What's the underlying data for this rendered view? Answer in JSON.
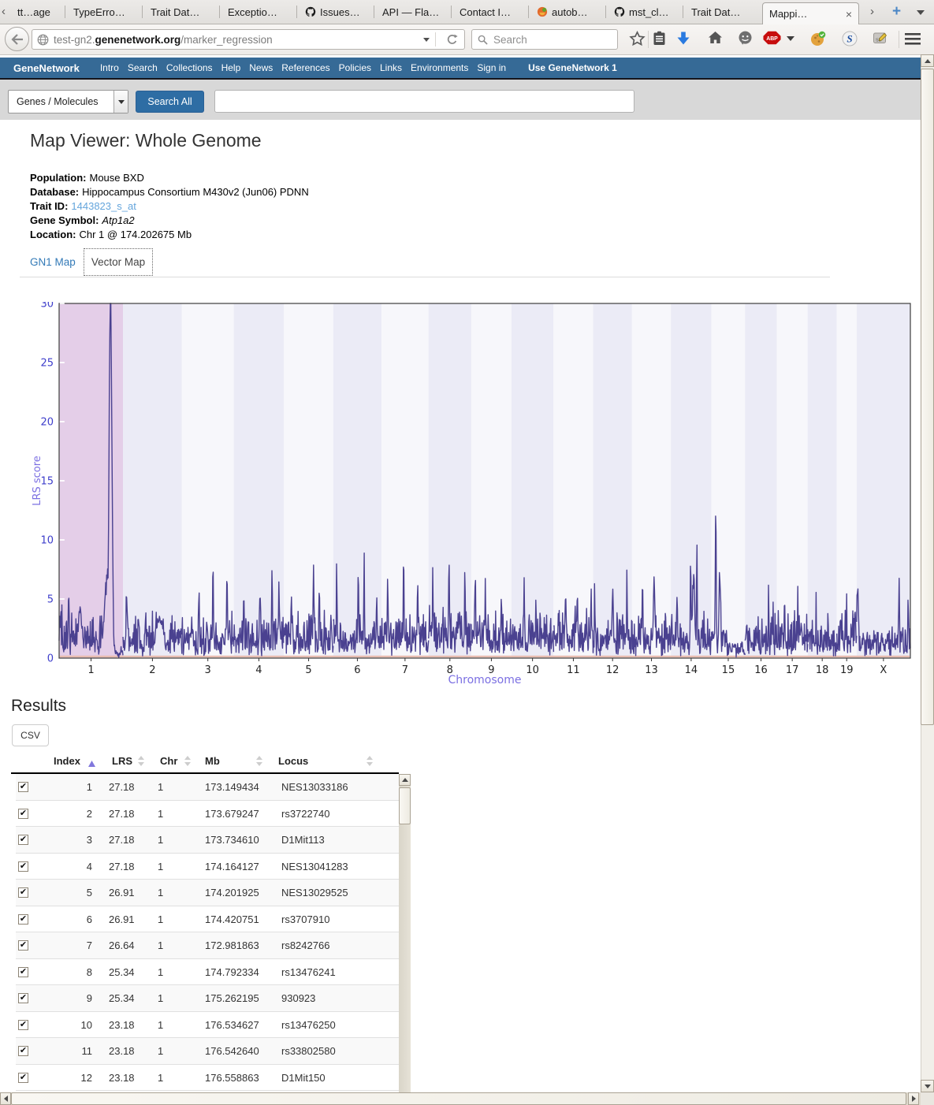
{
  "browser": {
    "tabs": [
      {
        "label": "tt…age",
        "icon": null,
        "active": false
      },
      {
        "label": "TypeErro…",
        "icon": null,
        "active": false
      },
      {
        "label": "Trait Dat…",
        "icon": null,
        "active": false
      },
      {
        "label": "Exceptio…",
        "icon": null,
        "active": false
      },
      {
        "label": "Issues…",
        "icon": "github-icon",
        "active": false
      },
      {
        "label": "API — Fla…",
        "icon": null,
        "active": false
      },
      {
        "label": "Contact I…",
        "icon": null,
        "active": false
      },
      {
        "label": "autob…",
        "icon": "autobuild-icon",
        "active": false
      },
      {
        "label": "mst_cl…",
        "icon": "github-icon",
        "active": false
      },
      {
        "label": "Trait Dat…",
        "icon": null,
        "active": false
      },
      {
        "label": "Mappi…",
        "icon": null,
        "active": true
      }
    ],
    "url": {
      "prefix": "test-gn2.",
      "domain": "genenetwork.org",
      "path": "/marker_regression"
    },
    "search_placeholder": "Search",
    "adblock_label": "ABP",
    "toolbar_icons": [
      "bookmark-star-icon",
      "bookmarks-clipboard-icon",
      "downloads-icon",
      "home-icon",
      "messenger-icon",
      "adblock-icon",
      "adblock-dropdown-icon",
      "cookie-addon-icon",
      "s-addon-icon",
      "scrapbook-addon-icon",
      "menu-icon"
    ]
  },
  "navbar": {
    "brand": "GeneNetwork",
    "items": [
      "Intro",
      "Search",
      "Collections",
      "Help",
      "News",
      "References",
      "Policies",
      "Links",
      "Environments",
      "Sign in"
    ],
    "right_link": "Use GeneNetwork 1"
  },
  "search_bar": {
    "category": "Genes / Molecules",
    "button": "Search All",
    "query_value": ""
  },
  "page": {
    "title": "Map Viewer: Whole Genome",
    "details": [
      {
        "label": "Population:",
        "value": "Mouse BXD",
        "kind": "text"
      },
      {
        "label": "Database:",
        "value": "Hippocampus Consortium M430v2 (Jun06) PDNN",
        "kind": "text"
      },
      {
        "label": "Trait ID:",
        "value": "1443823_s_at",
        "kind": "link"
      },
      {
        "label": "Gene Symbol:",
        "value": "Atp1a2",
        "kind": "italic"
      },
      {
        "label": "Location:",
        "value": "Chr 1 @ 174.202675 Mb",
        "kind": "text"
      }
    ],
    "map_tabs": [
      {
        "label": "GN1 Map",
        "active": false
      },
      {
        "label": "Vector Map",
        "active": true
      }
    ]
  },
  "chart_data": {
    "type": "line",
    "title": "",
    "xlabel": "Chromosome",
    "ylabel": "LRS score",
    "ylim": [
      0,
      30
    ],
    "yticks": [
      0,
      5,
      10,
      15,
      20,
      25,
      30
    ],
    "x_categories": [
      "1",
      "2",
      "3",
      "4",
      "5",
      "6",
      "7",
      "8",
      "9",
      "10",
      "11",
      "12",
      "13",
      "14",
      "15",
      "16",
      "17",
      "18",
      "19",
      "X"
    ],
    "chromosome_lengths_mb": [
      197,
      182,
      160,
      155,
      152,
      149,
      145,
      132,
      124,
      130,
      122,
      120,
      120,
      125,
      104,
      98,
      95,
      90,
      61,
      166
    ],
    "highlighted_chromosome": "1",
    "grid": false,
    "legend": "none",
    "line_color": "#4a4190",
    "band_highlight_color": "#e4cee8",
    "band_even_color": "#ebebf6",
    "band_odd_color": "#f7f7fb",
    "baseline_color": "#e8bcb0",
    "axis_tick_color": "#3e3ecb",
    "axis_title_color": "#7b6fe2",
    "top_marker": {
      "lrs": 27.18,
      "chr": "1",
      "mb": 173.149434,
      "locus": "NES13033186"
    },
    "profiles": [
      {
        "chr": "1",
        "base": 1.8,
        "noise_max": 5.0,
        "peaks": [
          [
            0.15,
            5.5,
            0.01
          ],
          [
            0.33,
            4.2,
            0.03
          ],
          [
            0.76,
            7.0,
            0.05
          ],
          [
            0.805,
            31,
            0.022
          ]
        ],
        "damp": [
          0.86,
          0.3
        ]
      },
      {
        "chr": "2",
        "base": 1.5,
        "noise_max": 4.2,
        "peaks": [
          [
            0.06,
            6.2,
            0.008
          ],
          [
            0.62,
            3.8,
            0.06
          ]
        ]
      },
      {
        "chr": "3",
        "base": 1.6,
        "noise_max": 4.5,
        "peaks": [
          [
            0.33,
            5.5,
            0.01
          ],
          [
            0.6,
            9.2,
            0.008
          ],
          [
            0.87,
            7.0,
            0.01
          ]
        ]
      },
      {
        "chr": "4",
        "base": 1.5,
        "noise_max": 4.0,
        "peaks": [
          [
            0.2,
            5.0,
            0.012
          ],
          [
            0.52,
            6.3,
            0.01
          ],
          [
            0.76,
            8.8,
            0.008
          ],
          [
            0.9,
            6.0,
            0.01
          ]
        ]
      },
      {
        "chr": "5",
        "base": 1.5,
        "noise_max": 4.2,
        "peaks": [
          [
            0.15,
            5.6,
            0.01
          ],
          [
            0.6,
            7.2,
            0.012
          ],
          [
            0.72,
            6.9,
            0.008
          ]
        ]
      },
      {
        "chr": "6",
        "base": 1.6,
        "noise_max": 4.0,
        "peaks": [
          [
            0.07,
            9.4,
            0.007
          ],
          [
            0.52,
            8.3,
            0.01
          ],
          [
            0.64,
            8.6,
            0.008
          ],
          [
            0.9,
            5.8,
            0.01
          ]
        ]
      },
      {
        "chr": "7",
        "base": 1.7,
        "noise_max": 4.5,
        "peaks": [
          [
            0.13,
            7.0,
            0.01
          ],
          [
            0.47,
            8.1,
            0.009
          ],
          [
            0.77,
            6.3,
            0.01
          ]
        ]
      },
      {
        "chr": "8",
        "base": 2.4,
        "noise_max": 5.5,
        "peaks": [
          [
            0.1,
            9.4,
            0.008
          ],
          [
            0.48,
            8.8,
            0.012
          ],
          [
            0.85,
            8.2,
            0.008
          ]
        ]
      },
      {
        "chr": "9",
        "base": 1.8,
        "noise_max": 4.5,
        "peaks": [
          [
            0.1,
            7.6,
            0.009
          ],
          [
            0.35,
            8.0,
            0.009
          ],
          [
            0.75,
            6.0,
            0.01
          ]
        ]
      },
      {
        "chr": "10",
        "base": 1.6,
        "noise_max": 4.2,
        "peaks": [
          [
            0.3,
            6.6,
            0.01
          ],
          [
            0.58,
            6.2,
            0.009
          ]
        ]
      },
      {
        "chr": "11",
        "base": 2.0,
        "noise_max": 4.8,
        "peaks": [
          [
            0.3,
            5.2,
            0.02
          ],
          [
            0.6,
            5.5,
            0.015
          ],
          [
            0.95,
            7.2,
            0.008
          ]
        ]
      },
      {
        "chr": "12",
        "base": 1.6,
        "noise_max": 4.0,
        "peaks": [
          [
            0.04,
            7.0,
            0.008
          ],
          [
            0.5,
            5.8,
            0.02
          ],
          [
            0.87,
            7.6,
            0.009
          ]
        ]
      },
      {
        "chr": "13",
        "base": 1.7,
        "noise_max": 4.5,
        "peaks": [
          [
            0.27,
            8.6,
            0.008
          ],
          [
            0.57,
            6.7,
            0.02
          ]
        ]
      },
      {
        "chr": "14",
        "base": 1.5,
        "noise_max": 4.2,
        "peaks": [
          [
            0.15,
            5.0,
            0.015
          ],
          [
            0.49,
            8.6,
            0.012
          ],
          [
            0.56,
            7.0,
            0.03
          ],
          [
            0.64,
            9.9,
            0.01
          ]
        ]
      },
      {
        "chr": "15",
        "base": 1.6,
        "noise_max": 3.2,
        "peaks": [
          [
            0.13,
            12.3,
            0.015
          ],
          [
            0.25,
            8.0,
            0.025
          ]
        ],
        "damp": [
          0.45,
          0.55
        ]
      },
      {
        "chr": "16",
        "base": 1.6,
        "noise_max": 4.0,
        "peaks": [
          [
            0.74,
            6.7,
            0.009
          ],
          [
            0.88,
            5.5,
            0.009
          ]
        ]
      },
      {
        "chr": "17",
        "base": 1.8,
        "noise_max": 4.5,
        "peaks": [
          [
            0.25,
            5.2,
            0.012
          ],
          [
            0.68,
            5.8,
            0.01
          ]
        ]
      },
      {
        "chr": "18",
        "base": 1.4,
        "noise_max": 3.5,
        "peaks": [
          [
            0.29,
            6.4,
            0.009
          ],
          [
            0.7,
            5.0,
            0.01
          ]
        ]
      },
      {
        "chr": "19",
        "base": 1.8,
        "noise_max": 4.5,
        "peaks": [
          [
            0.2,
            5.4,
            0.012
          ],
          [
            0.5,
            6.4,
            0.01
          ],
          [
            0.8,
            5.0,
            0.012
          ]
        ]
      },
      {
        "chr": "X",
        "base": 1.3,
        "noise_max": 3.2,
        "peaks": [
          [
            0.02,
            6.8,
            0.015
          ],
          [
            0.79,
            7.3,
            0.008
          ],
          [
            0.96,
            5.5,
            0.008
          ]
        ]
      }
    ]
  },
  "results": {
    "heading": "Results",
    "csv_button": "CSV",
    "columns": [
      {
        "label": "Index",
        "sort": "asc"
      },
      {
        "label": "LRS",
        "sort": "none"
      },
      {
        "label": "Chr",
        "sort": "none"
      },
      {
        "label": "Mb",
        "sort": "none"
      },
      {
        "label": "Locus",
        "sort": "none"
      }
    ],
    "rows": [
      {
        "checked": true,
        "index": "1",
        "lrs": "27.18",
        "chr": "1",
        "mb": "173.149434",
        "locus": "NES13033186"
      },
      {
        "checked": true,
        "index": "2",
        "lrs": "27.18",
        "chr": "1",
        "mb": "173.679247",
        "locus": "rs3722740"
      },
      {
        "checked": true,
        "index": "3",
        "lrs": "27.18",
        "chr": "1",
        "mb": "173.734610",
        "locus": "D1Mit113"
      },
      {
        "checked": true,
        "index": "4",
        "lrs": "27.18",
        "chr": "1",
        "mb": "174.164127",
        "locus": "NES13041283"
      },
      {
        "checked": true,
        "index": "5",
        "lrs": "26.91",
        "chr": "1",
        "mb": "174.201925",
        "locus": "NES13029525"
      },
      {
        "checked": true,
        "index": "6",
        "lrs": "26.91",
        "chr": "1",
        "mb": "174.420751",
        "locus": "rs3707910"
      },
      {
        "checked": true,
        "index": "7",
        "lrs": "26.64",
        "chr": "1",
        "mb": "172.981863",
        "locus": "rs8242766"
      },
      {
        "checked": true,
        "index": "8",
        "lrs": "25.34",
        "chr": "1",
        "mb": "174.792334",
        "locus": "rs13476241"
      },
      {
        "checked": true,
        "index": "9",
        "lrs": "25.34",
        "chr": "1",
        "mb": "175.262195",
        "locus": "930923"
      },
      {
        "checked": true,
        "index": "10",
        "lrs": "23.18",
        "chr": "1",
        "mb": "176.534627",
        "locus": "rs13476250"
      },
      {
        "checked": true,
        "index": "11",
        "lrs": "23.18",
        "chr": "1",
        "mb": "176.542640",
        "locus": "rs33802580"
      },
      {
        "checked": true,
        "index": "12",
        "lrs": "23.18",
        "chr": "1",
        "mb": "176.558863",
        "locus": "D1Mit150"
      }
    ]
  }
}
